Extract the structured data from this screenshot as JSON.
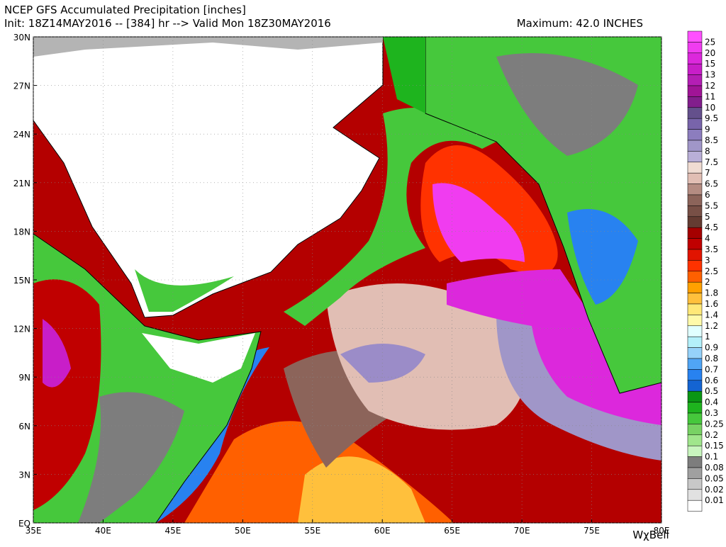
{
  "header": {
    "title": "NCEP GFS Accumulated Precipitation [inches]",
    "init": "Init: 18Z14MAY2016 -- [384] hr --> Valid Mon 18Z30MAY2016",
    "maximum": "Maximum: 42.0 INCHES"
  },
  "map": {
    "lat_labels": [
      "30N",
      "27N",
      "24N",
      "21N",
      "18N",
      "15N",
      "12N",
      "9N",
      "6N",
      "3N",
      "EQ"
    ],
    "lon_labels": [
      "35E",
      "40E",
      "45E",
      "50E",
      "55E",
      "60E",
      "65E",
      "70E",
      "75E",
      "80E"
    ]
  },
  "colorbar": {
    "labels": [
      "25",
      "20",
      "15",
      "13",
      "12",
      "11",
      "10",
      "9.5",
      "9",
      "8.5",
      "8",
      "7.5",
      "7",
      "6.5",
      "6",
      "5.5",
      "5",
      "4.5",
      "4",
      "3.5",
      "3",
      "2.5",
      "2",
      "1.8",
      "1.6",
      "1.4",
      "1.2",
      "1",
      "0.9",
      "0.8",
      "0.7",
      "0.6",
      "0.5",
      "0.4",
      "0.3",
      "0.25",
      "0.2",
      "0.15",
      "0.1",
      "0.08",
      "0.05",
      "0.02",
      "0.01"
    ],
    "colors": [
      "#ff50ff",
      "#f03cf0",
      "#dc28dc",
      "#c81ec8",
      "#b41eb4",
      "#a01496",
      "#821e8c",
      "#64508c",
      "#7864aa",
      "#8c7dbe",
      "#a096c8",
      "#b9afd7",
      "#f0dcd2",
      "#e1beb4",
      "#b48c82",
      "#8c645a",
      "#785046",
      "#643c32",
      "#a50000",
      "#c00000",
      "#e11400",
      "#ff3200",
      "#ff6000",
      "#ffa000",
      "#ffc03c",
      "#ffe878",
      "#fffaaa",
      "#e1ffff",
      "#b4f0fa",
      "#96d2fa",
      "#50a5f5",
      "#2882f0",
      "#1464d2",
      "#0a9614",
      "#1eb41e",
      "#46c83c",
      "#78d264",
      "#a0e68c",
      "#c8f5be",
      "#7d7d7d",
      "#a0a0a0",
      "#c8c8c8",
      "#e1e1e1",
      "#ffffff"
    ]
  },
  "watermark": "WχBell"
}
